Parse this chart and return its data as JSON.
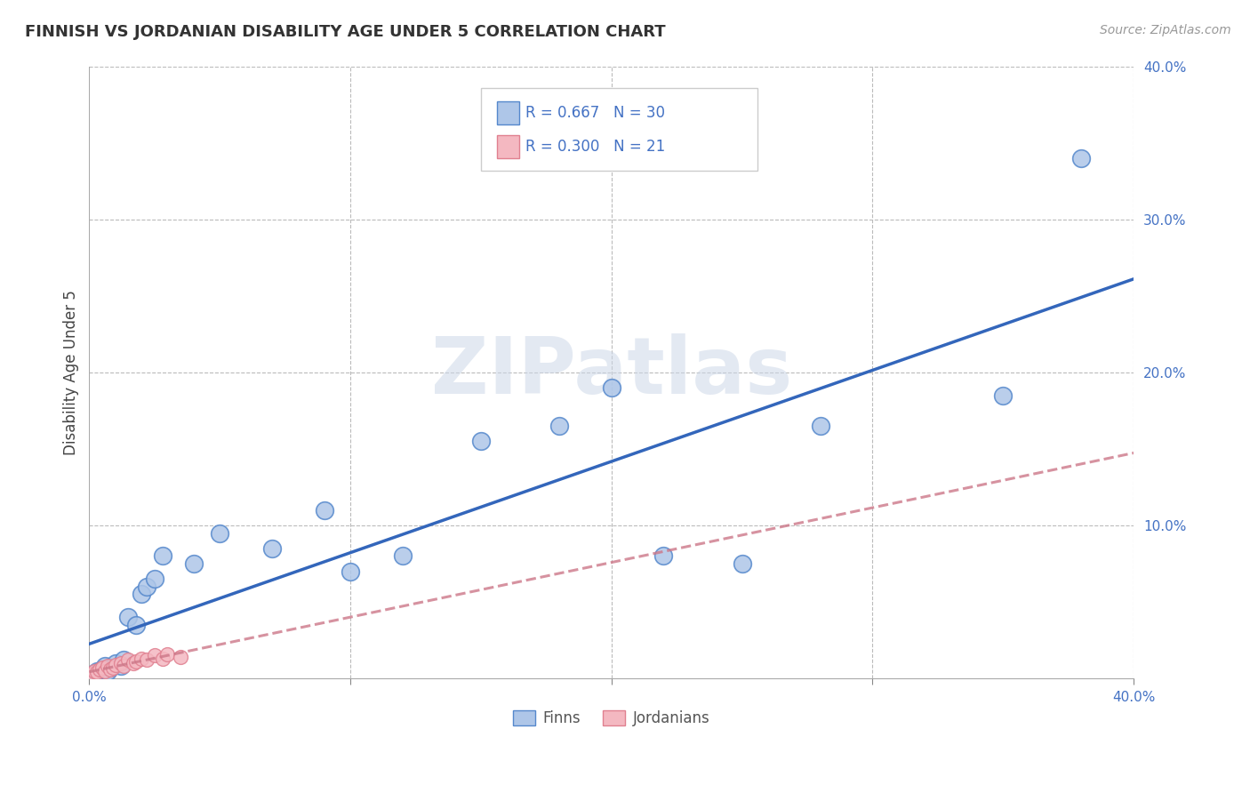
{
  "title": "FINNISH VS JORDANIAN DISABILITY AGE UNDER 5 CORRELATION CHART",
  "source": "Source: ZipAtlas.com",
  "ylabel": "Disability Age Under 5",
  "xlim": [
    0.0,
    0.4
  ],
  "ylim": [
    0.0,
    0.4
  ],
  "grid_color": "#bbbbbb",
  "background_color": "#ffffff",
  "finns_color": "#aec6e8",
  "finns_edge_color": "#5588cc",
  "finns_line_color": "#3366bb",
  "jordanians_color": "#f4b8c1",
  "jordanians_edge_color": "#e08090",
  "jordanians_line_color": "#cc7788",
  "legend_text_color": "#4472c4",
  "tick_color": "#4472c4",
  "watermark_text": "ZIPatlas",
  "finns_R": 0.667,
  "finns_N": 30,
  "jordanians_R": 0.3,
  "jordanians_N": 21,
  "finns_x": [
    0.002,
    0.003,
    0.004,
    0.005,
    0.006,
    0.007,
    0.008,
    0.01,
    0.012,
    0.013,
    0.015,
    0.018,
    0.02,
    0.022,
    0.025,
    0.028,
    0.04,
    0.05,
    0.07,
    0.09,
    0.1,
    0.12,
    0.15,
    0.18,
    0.2,
    0.22,
    0.25,
    0.28,
    0.35,
    0.38
  ],
  "finns_y": [
    0.003,
    0.005,
    0.004,
    0.006,
    0.008,
    0.005,
    0.007,
    0.01,
    0.008,
    0.012,
    0.04,
    0.035,
    0.055,
    0.06,
    0.065,
    0.08,
    0.075,
    0.095,
    0.085,
    0.11,
    0.07,
    0.08,
    0.155,
    0.165,
    0.19,
    0.08,
    0.075,
    0.165,
    0.185,
    0.34
  ],
  "jordanians_x": [
    0.001,
    0.002,
    0.003,
    0.004,
    0.005,
    0.006,
    0.007,
    0.008,
    0.009,
    0.01,
    0.012,
    0.013,
    0.015,
    0.017,
    0.018,
    0.02,
    0.022,
    0.025,
    0.028,
    0.03,
    0.035
  ],
  "jordanians_y": [
    0.003,
    0.005,
    0.004,
    0.006,
    0.007,
    0.005,
    0.008,
    0.006,
    0.007,
    0.009,
    0.01,
    0.008,
    0.012,
    0.01,
    0.011,
    0.013,
    0.012,
    0.015,
    0.013,
    0.016,
    0.014
  ]
}
